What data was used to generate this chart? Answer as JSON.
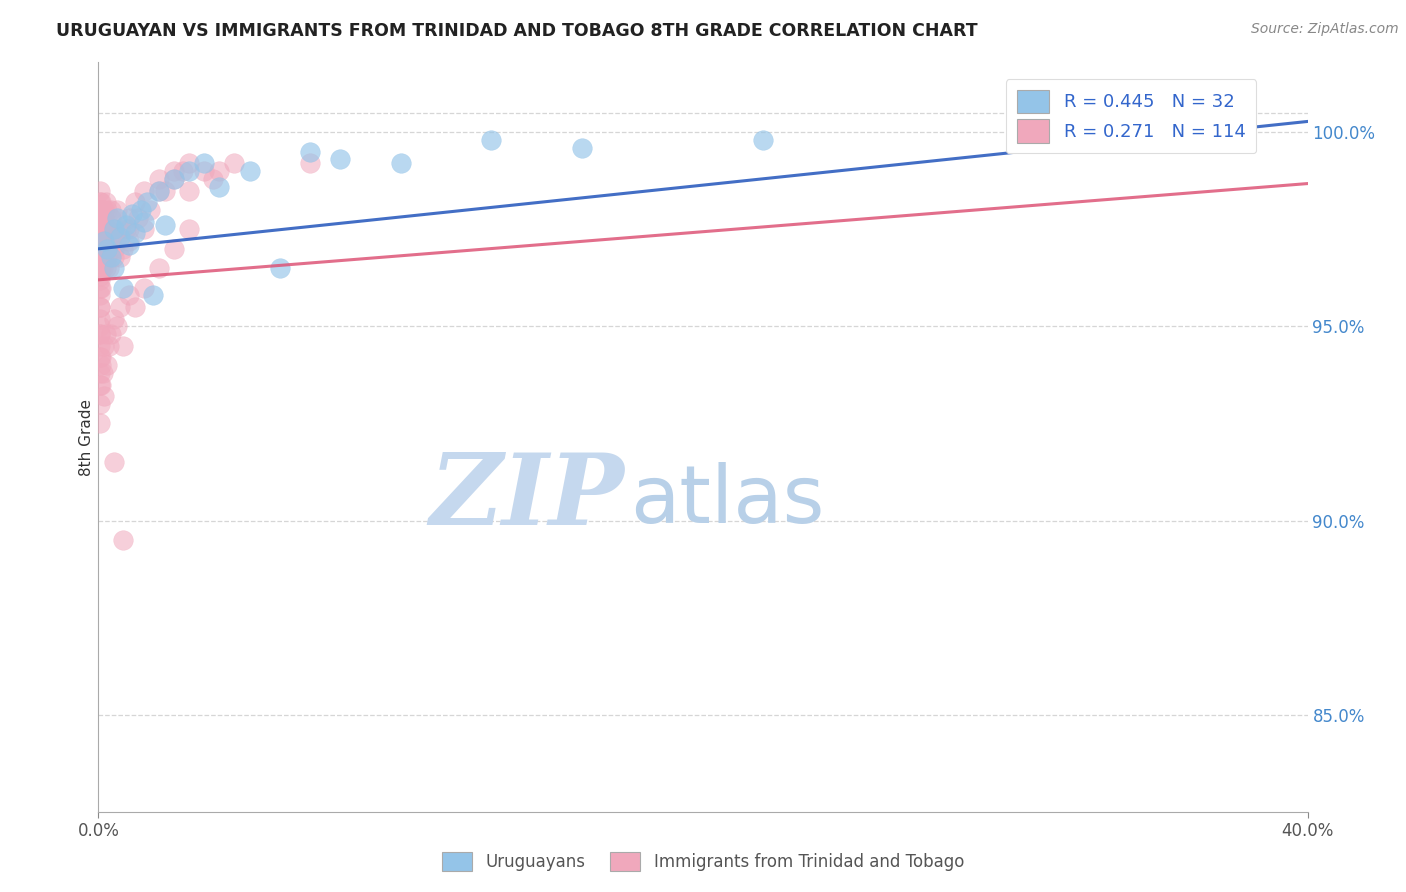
{
  "title": "URUGUAYAN VS IMMIGRANTS FROM TRINIDAD AND TOBAGO 8TH GRADE CORRELATION CHART",
  "source": "Source: ZipAtlas.com",
  "ylabel": "8th Grade",
  "x_range": [
    0.0,
    40.0
  ],
  "y_range": [
    82.5,
    101.8
  ],
  "y_ticks": [
    85.0,
    90.0,
    95.0,
    100.0
  ],
  "y_tick_labels": [
    "85.0%",
    "90.0%",
    "95.0%",
    "100.0%"
  ],
  "legend_blue_label": "R = 0.445   N = 32",
  "legend_pink_label": "R = 0.271   N = 114",
  "legend_label_blue": "Uruguayans",
  "legend_label_pink": "Immigrants from Trinidad and Tobago",
  "blue_color": "#94C4E8",
  "pink_color": "#F0A8BC",
  "blue_line_color": "#2255BB",
  "pink_line_color": "#DD5577",
  "watermark_zip": "ZIP",
  "watermark_atlas": "atlas",
  "watermark_color_zip": "#C5D8EE",
  "watermark_color_atlas": "#B8D0E8",
  "blue_scatter_x": [
    0.2,
    0.3,
    0.4,
    0.5,
    0.5,
    0.6,
    0.7,
    0.8,
    0.9,
    1.0,
    1.1,
    1.2,
    1.4,
    1.5,
    1.6,
    1.8,
    2.0,
    2.2,
    2.5,
    3.0,
    3.5,
    4.0,
    5.0,
    6.0,
    7.0,
    8.0,
    10.0,
    13.0,
    16.0,
    22.0,
    35.0,
    37.0
  ],
  "blue_scatter_y": [
    97.2,
    97.0,
    96.8,
    97.5,
    96.5,
    97.8,
    97.3,
    96.0,
    97.6,
    97.1,
    97.9,
    97.4,
    98.0,
    97.7,
    98.2,
    95.8,
    98.5,
    97.6,
    98.8,
    99.0,
    99.2,
    98.6,
    99.0,
    96.5,
    99.5,
    99.3,
    99.2,
    99.8,
    99.6,
    99.8,
    100.2,
    100.5
  ],
  "pink_scatter_x": [
    0.05,
    0.05,
    0.05,
    0.05,
    0.05,
    0.05,
    0.05,
    0.05,
    0.05,
    0.05,
    0.05,
    0.05,
    0.05,
    0.05,
    0.05,
    0.05,
    0.05,
    0.05,
    0.05,
    0.05,
    0.1,
    0.1,
    0.1,
    0.1,
    0.1,
    0.1,
    0.1,
    0.1,
    0.1,
    0.15,
    0.15,
    0.15,
    0.15,
    0.15,
    0.2,
    0.2,
    0.2,
    0.2,
    0.2,
    0.25,
    0.25,
    0.25,
    0.3,
    0.3,
    0.3,
    0.3,
    0.35,
    0.35,
    0.4,
    0.4,
    0.4,
    0.5,
    0.5,
    0.5,
    0.6,
    0.6,
    0.7,
    0.7,
    0.8,
    0.9,
    1.0,
    1.0,
    1.0,
    1.2,
    1.3,
    1.5,
    1.5,
    1.7,
    2.0,
    2.0,
    2.2,
    2.5,
    2.5,
    2.8,
    3.0,
    3.0,
    3.5,
    3.8,
    4.0,
    4.5,
    0.05,
    0.05,
    0.05,
    0.05,
    0.05,
    0.05,
    0.05,
    0.05,
    0.05,
    0.05,
    0.05,
    0.1,
    0.1,
    0.1,
    0.15,
    0.2,
    0.2,
    0.25,
    0.3,
    0.35,
    0.4,
    0.5,
    0.6,
    0.7,
    0.8,
    1.0,
    1.2,
    1.5,
    2.0,
    2.5,
    3.0,
    0.5,
    0.8,
    7.0
  ],
  "pink_scatter_y": [
    97.2,
    97.5,
    97.8,
    97.0,
    96.8,
    96.5,
    97.3,
    97.6,
    96.2,
    97.9,
    96.0,
    98.0,
    97.4,
    98.2,
    96.8,
    97.7,
    95.5,
    98.5,
    95.8,
    96.3,
    97.0,
    96.5,
    97.8,
    98.0,
    97.3,
    96.0,
    97.5,
    98.2,
    96.8,
    97.0,
    96.5,
    97.3,
    98.0,
    97.7,
    97.2,
    96.8,
    98.0,
    97.5,
    97.8,
    97.0,
    96.5,
    98.2,
    97.5,
    97.0,
    96.8,
    98.0,
    97.3,
    96.5,
    97.8,
    97.2,
    98.0,
    97.5,
    97.0,
    96.8,
    97.3,
    98.0,
    97.5,
    96.8,
    97.0,
    97.5,
    97.8,
    97.2,
    97.5,
    98.2,
    97.8,
    98.5,
    97.5,
    98.0,
    98.8,
    98.5,
    98.5,
    99.0,
    98.8,
    99.0,
    98.5,
    99.2,
    99.0,
    98.8,
    99.0,
    99.2,
    95.2,
    94.8,
    95.5,
    94.5,
    95.0,
    93.8,
    94.2,
    93.5,
    94.8,
    93.0,
    92.5,
    94.0,
    93.5,
    94.2,
    93.8,
    94.5,
    93.2,
    94.8,
    94.0,
    94.5,
    94.8,
    95.2,
    95.0,
    95.5,
    94.5,
    95.8,
    95.5,
    96.0,
    96.5,
    97.0,
    97.5,
    91.5,
    89.5,
    99.2
  ]
}
